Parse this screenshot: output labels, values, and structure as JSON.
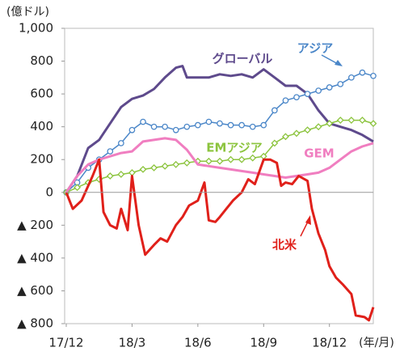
{
  "chart_data": {
    "type": "line",
    "y_unit": "(億ドル)",
    "x_unit": "(年/月)",
    "xlim": [
      0,
      14
    ],
    "xticks": [
      {
        "value": 0,
        "label": "17/12"
      },
      {
        "value": 3,
        "label": "18/3"
      },
      {
        "value": 6,
        "label": "18/6"
      },
      {
        "value": 9,
        "label": "18/9"
      },
      {
        "value": 12,
        "label": "18/12"
      }
    ],
    "ylim": [
      -800,
      1000
    ],
    "yticks": [
      {
        "value": 1000,
        "label": "1,000"
      },
      800,
      600,
      400,
      200,
      0,
      {
        "value": -200,
        "label": "▲ 200"
      },
      {
        "value": -400,
        "label": "▲ 400"
      },
      {
        "value": -600,
        "label": "▲ 600"
      },
      {
        "value": -800,
        "label": "▲ 800"
      }
    ],
    "series": [
      {
        "name": "グローバル",
        "color": "#5e4a8c",
        "marker": "none",
        "x": [
          0,
          0.5,
          1,
          1.5,
          2,
          2.5,
          3,
          3.5,
          4,
          4.5,
          5,
          5.3,
          5.5,
          6,
          6.5,
          7,
          7.5,
          8,
          8.5,
          9,
          9.5,
          10,
          10.5,
          11,
          11.5,
          12,
          12.5,
          13,
          13.5,
          14
        ],
        "values": [
          0,
          100,
          270,
          320,
          420,
          520,
          570,
          590,
          630,
          700,
          760,
          770,
          700,
          700,
          700,
          720,
          710,
          720,
          700,
          750,
          700,
          650,
          650,
          600,
          500,
          420,
          400,
          380,
          350,
          310
        ]
      },
      {
        "name": "アジア",
        "color": "#4a86c8",
        "marker": "circle",
        "x": [
          0,
          0.5,
          1,
          1.5,
          2,
          2.5,
          3,
          3.5,
          4,
          4.5,
          5,
          5.5,
          6,
          6.5,
          7,
          7.5,
          8,
          8.5,
          9,
          9.5,
          10,
          10.5,
          11,
          11.5,
          12,
          12.5,
          13,
          13.5,
          14
        ],
        "values": [
          0,
          60,
          150,
          200,
          250,
          300,
          380,
          430,
          400,
          400,
          380,
          400,
          410,
          430,
          420,
          410,
          410,
          400,
          410,
          500,
          560,
          580,
          600,
          620,
          640,
          660,
          700,
          730,
          710
        ]
      },
      {
        "name": "EMアジア",
        "color": "#8cc43e",
        "marker": "diamond",
        "x": [
          0,
          0.5,
          1,
          1.5,
          2,
          2.5,
          3,
          3.5,
          4,
          4.5,
          5,
          5.5,
          6,
          6.5,
          7,
          7.5,
          8,
          8.5,
          9,
          9.5,
          10,
          10.5,
          11,
          11.5,
          12,
          12.5,
          13,
          13.5,
          14
        ],
        "values": [
          0,
          30,
          60,
          80,
          100,
          110,
          120,
          140,
          150,
          160,
          170,
          180,
          190,
          190,
          190,
          200,
          200,
          210,
          220,
          300,
          340,
          360,
          380,
          400,
          420,
          440,
          440,
          440,
          420
        ]
      },
      {
        "name": "GEM",
        "color": "#f07ec0",
        "marker": "none",
        "x": [
          0,
          0.5,
          1,
          1.5,
          2,
          2.5,
          3,
          3.5,
          4,
          4.5,
          5,
          5.5,
          6,
          6.5,
          7,
          7.5,
          8,
          8.5,
          9,
          9.5,
          10,
          10.5,
          11,
          11.5,
          12,
          12.5,
          13,
          13.5,
          14
        ],
        "values": [
          0,
          100,
          170,
          200,
          220,
          240,
          250,
          310,
          320,
          330,
          320,
          260,
          170,
          160,
          150,
          140,
          130,
          120,
          110,
          100,
          90,
          100,
          110,
          120,
          150,
          200,
          250,
          280,
          300
        ]
      },
      {
        "name": "北米",
        "color": "#e0201a",
        "marker": "none",
        "x": [
          0,
          0.3,
          0.7,
          1.2,
          1.5,
          1.7,
          2,
          2.3,
          2.5,
          2.8,
          3,
          3.3,
          3.6,
          4,
          4.3,
          4.6,
          5,
          5.3,
          5.6,
          6,
          6.3,
          6.5,
          6.8,
          7,
          7.3,
          7.6,
          8,
          8.3,
          8.6,
          9,
          9.3,
          9.6,
          9.8,
          10,
          10.3,
          10.6,
          11,
          11.2,
          11.5,
          11.8,
          12,
          12.3,
          12.6,
          13,
          13.2,
          13.6,
          13.8,
          14
        ],
        "values": [
          0,
          -100,
          -50,
          100,
          200,
          -120,
          -200,
          -220,
          -100,
          -230,
          100,
          -200,
          -380,
          -320,
          -280,
          -300,
          -200,
          -150,
          -80,
          -50,
          60,
          -170,
          -180,
          -150,
          -100,
          -50,
          0,
          80,
          50,
          200,
          200,
          180,
          40,
          60,
          50,
          100,
          70,
          -100,
          -250,
          -350,
          -450,
          -520,
          -560,
          -620,
          -750,
          -760,
          -780,
          -700
        ]
      }
    ]
  }
}
